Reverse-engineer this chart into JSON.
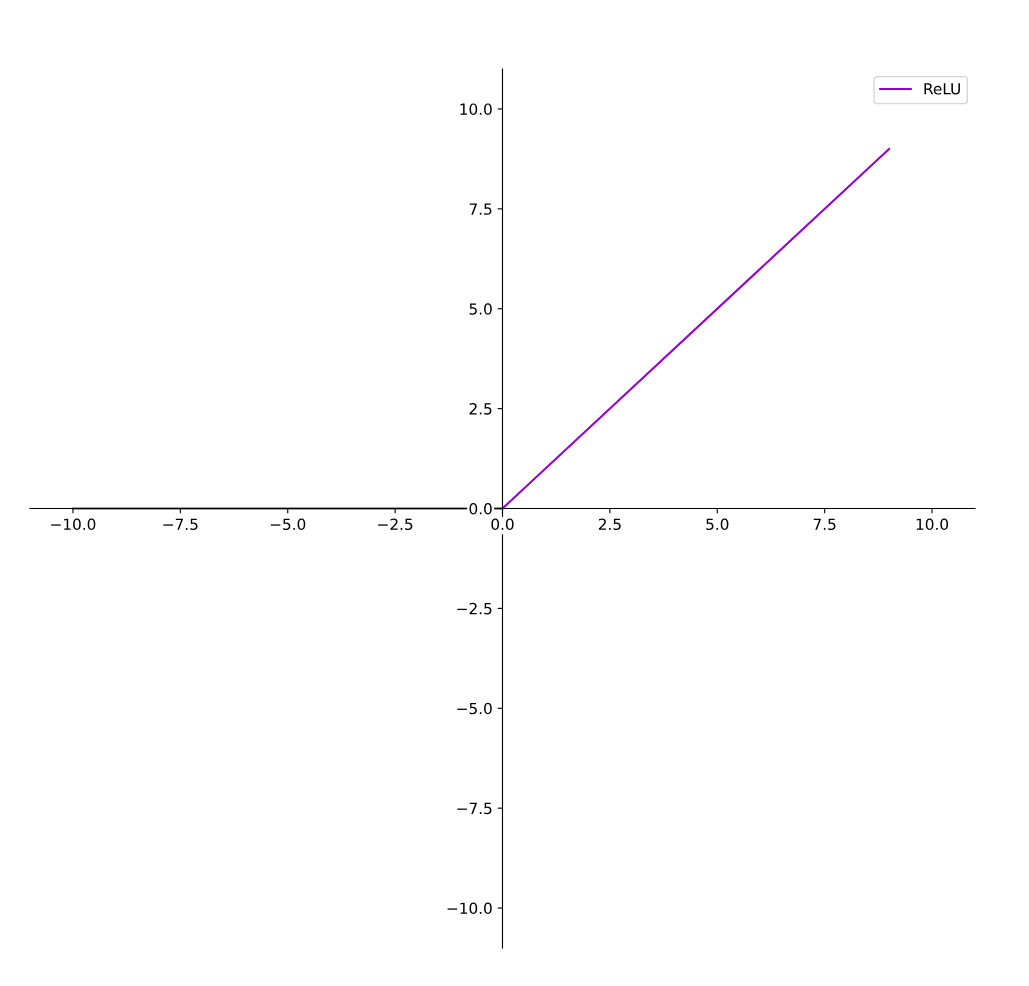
{
  "chart_data": {
    "type": "line",
    "x": [
      -10,
      0,
      9
    ],
    "series": [
      {
        "name": "ReLU",
        "color": "#9400d3",
        "values": [
          0,
          0,
          9
        ]
      }
    ],
    "xlim": [
      -11,
      11
    ],
    "ylim": [
      -11,
      11
    ],
    "xticks": [
      {
        "value": -10,
        "label": "−10.0"
      },
      {
        "value": -7.5,
        "label": "−7.5"
      },
      {
        "value": -5,
        "label": "−5.0"
      },
      {
        "value": -2.5,
        "label": "−2.5"
      },
      {
        "value": 0,
        "label": "0.0"
      },
      {
        "value": 2.5,
        "label": "2.5"
      },
      {
        "value": 5,
        "label": "5.0"
      },
      {
        "value": 7.5,
        "label": "7.5"
      },
      {
        "value": 10,
        "label": "10.0"
      }
    ],
    "yticks": [
      {
        "value": -10,
        "label": "−10.0"
      },
      {
        "value": -7.5,
        "label": "−7.5"
      },
      {
        "value": -5,
        "label": "−5.0"
      },
      {
        "value": -2.5,
        "label": "−2.5"
      },
      {
        "value": 0,
        "label": "0.0"
      },
      {
        "value": 2.5,
        "label": "2.5"
      },
      {
        "value": 5,
        "label": "5.0"
      },
      {
        "value": 7.5,
        "label": "7.5"
      },
      {
        "value": 10,
        "label": "10.0"
      }
    ],
    "legend": "top right",
    "grid": false
  }
}
